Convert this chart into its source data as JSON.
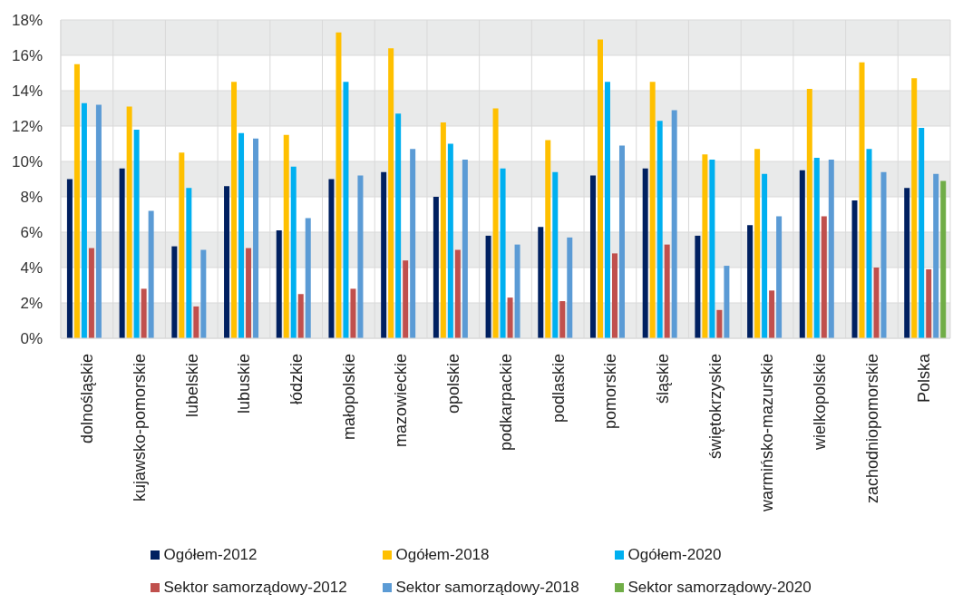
{
  "chart_data": {
    "type": "bar",
    "categories": [
      "dolnośląskie",
      "kujawsko-pomorskie",
      "lubelskie",
      "lubuskie",
      "łódzkie",
      "małopolskie",
      "mazowieckie",
      "opolskie",
      "podkarpackie",
      "podlaskie",
      "pomorskie",
      "śląskie",
      "świętokrzyskie",
      "warmińsko-mazurskie",
      "wielkopolskie",
      "zachodniopomorskie",
      "Polska"
    ],
    "series": [
      {
        "name": "Ogółem-2012",
        "color": "#002060",
        "values": [
          9.0,
          9.6,
          5.2,
          8.6,
          6.1,
          9.0,
          9.4,
          8.0,
          5.8,
          6.3,
          9.2,
          9.6,
          5.8,
          6.4,
          9.5,
          7.8,
          8.5
        ]
      },
      {
        "name": "Ogółem-2018",
        "color": "#ffc000",
        "values": [
          15.5,
          13.1,
          10.5,
          14.5,
          11.5,
          17.3,
          16.4,
          12.2,
          13.0,
          11.2,
          16.9,
          14.5,
          10.4,
          10.7,
          14.1,
          15.6,
          14.7
        ]
      },
      {
        "name": "Ogółem-2020",
        "color": "#00b0f0",
        "values": [
          13.3,
          11.8,
          8.5,
          11.6,
          9.7,
          14.5,
          12.7,
          11.0,
          9.6,
          9.4,
          14.5,
          12.3,
          10.1,
          9.3,
          10.2,
          10.7,
          11.9
        ]
      },
      {
        "name": "Sektor samorządowy-2012",
        "color": "#c0504d",
        "values": [
          5.1,
          2.8,
          1.8,
          5.1,
          2.5,
          2.8,
          4.4,
          5.0,
          2.3,
          2.1,
          4.8,
          5.3,
          1.6,
          2.7,
          6.9,
          4.0,
          3.9
        ]
      },
      {
        "name": "Sektor samorządowy-2018",
        "color": "#5b9bd5",
        "values": [
          13.2,
          7.2,
          5.0,
          11.3,
          6.8,
          9.2,
          10.7,
          10.1,
          5.3,
          5.7,
          10.9,
          12.9,
          4.1,
          6.9,
          10.1,
          9.4,
          9.3
        ]
      },
      {
        "name": "Sektor samorządowy-2020",
        "color": "#70ad47",
        "values": [
          null,
          null,
          null,
          null,
          null,
          null,
          null,
          null,
          null,
          null,
          null,
          null,
          null,
          null,
          null,
          null,
          8.9
        ]
      }
    ],
    "ylim": [
      0,
      18
    ],
    "yticks": [
      {
        "value": 0,
        "label": "0%"
      },
      {
        "value": 2,
        "label": "2%"
      },
      {
        "value": 4,
        "label": "4%"
      },
      {
        "value": 6,
        "label": "6%"
      },
      {
        "value": 8,
        "label": "8%"
      },
      {
        "value": 10,
        "label": "10%"
      },
      {
        "value": 12,
        "label": "12%"
      },
      {
        "value": 14,
        "label": "14%"
      },
      {
        "value": 16,
        "label": "16%"
      },
      {
        "value": 18,
        "label": "18%"
      }
    ],
    "grid": true,
    "legend": "bottom"
  }
}
